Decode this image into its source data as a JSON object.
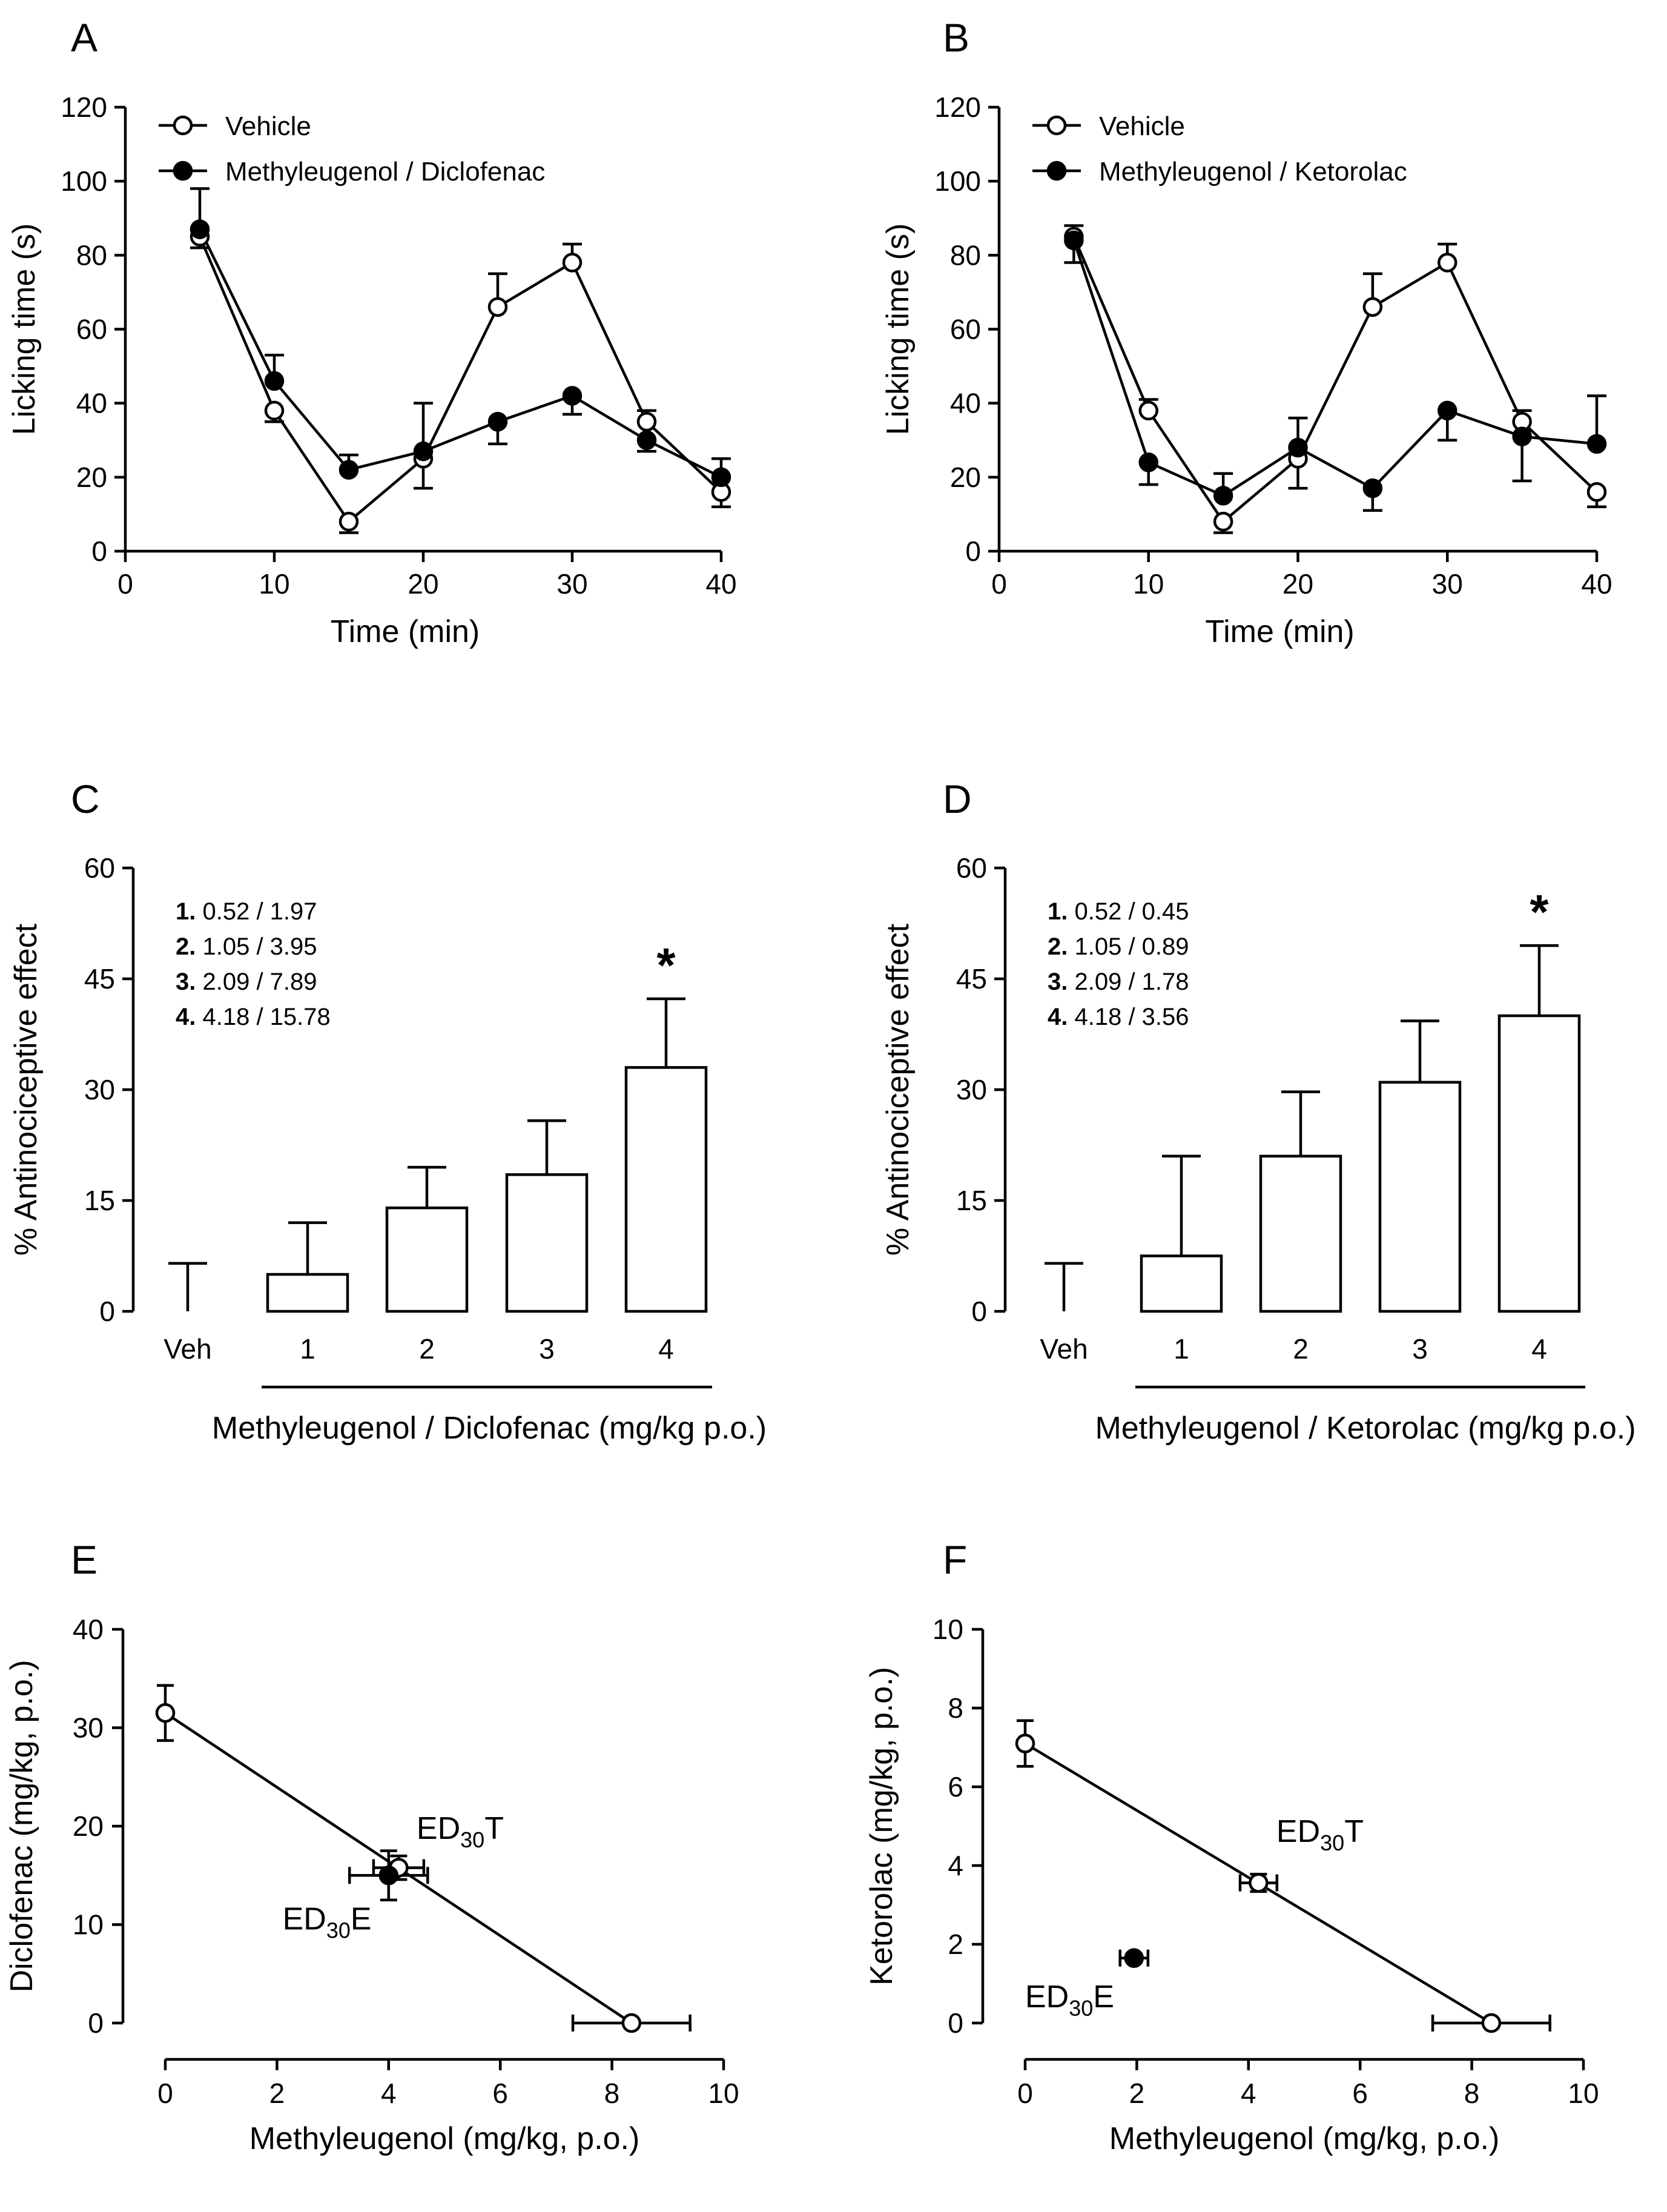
{
  "chart_data": [
    {
      "panel": "A",
      "type": "line",
      "xlabel": "Time  (min)",
      "ylabel": "Licking time (s)",
      "xlim": [
        0,
        40
      ],
      "ylim": [
        0,
        120
      ],
      "xticks": [
        0,
        10,
        20,
        30,
        40
      ],
      "yticks": [
        0,
        20,
        40,
        60,
        80,
        100,
        120
      ],
      "legend_position": "top-left",
      "series": [
        {
          "name": "Vehicle",
          "marker": "open",
          "x": [
            5,
            10,
            15,
            20,
            25,
            30,
            35,
            40
          ],
          "y": [
            85,
            38,
            8,
            25,
            66,
            78,
            35,
            16
          ],
          "err": [
            3,
            3,
            3,
            8,
            9,
            5,
            3,
            4
          ]
        },
        {
          "name": "Methyleugenol / Diclofenac",
          "marker": "filled",
          "x": [
            5,
            10,
            15,
            20,
            25,
            30,
            35,
            40
          ],
          "y": [
            87,
            46,
            22,
            27,
            35,
            42,
            30,
            20
          ],
          "err": [
            11,
            7,
            4,
            13,
            6,
            5,
            3,
            5
          ]
        }
      ]
    },
    {
      "panel": "B",
      "type": "line",
      "xlabel": "Time  (min)",
      "ylabel": "Licking time (s)",
      "xlim": [
        0,
        40
      ],
      "ylim": [
        0,
        120
      ],
      "xticks": [
        0,
        10,
        20,
        30,
        40
      ],
      "yticks": [
        0,
        20,
        40,
        60,
        80,
        100,
        120
      ],
      "legend_position": "top-left",
      "series": [
        {
          "name": "Vehicle",
          "marker": "open",
          "x": [
            5,
            10,
            15,
            20,
            25,
            30,
            35,
            40
          ],
          "y": [
            85,
            38,
            8,
            25,
            66,
            78,
            35,
            16
          ],
          "err": [
            3,
            3,
            3,
            8,
            9,
            5,
            3,
            4
          ]
        },
        {
          "name": "Methyleugenol / Ketorolac",
          "marker": "filled",
          "x": [
            5,
            10,
            15,
            20,
            25,
            30,
            35,
            40
          ],
          "y": [
            84,
            24,
            15,
            28,
            17,
            38,
            31,
            29
          ],
          "err": [
            6,
            6,
            6,
            8,
            6,
            8,
            12,
            13
          ]
        }
      ]
    },
    {
      "panel": "C",
      "type": "bar",
      "xlabel": "Methyleugenol / Diclofenac (mg/kg p.o.)",
      "ylabel": "% Antinociceptive effect",
      "ylim": [
        0,
        60
      ],
      "yticks": [
        0,
        15,
        30,
        45,
        60
      ],
      "categories": [
        "Veh",
        "1",
        "2",
        "3",
        "4"
      ],
      "values": [
        0,
        5,
        14,
        18.5,
        33
      ],
      "err": [
        6.5,
        7,
        5.5,
        7.3,
        9.3
      ],
      "significance": [
        "",
        "",
        "",
        "",
        "*"
      ],
      "dose_legend": [
        {
          "num": "1.",
          "text": " 0.52 / 1.97"
        },
        {
          "num": "2.",
          "text": " 1.05 / 3.95"
        },
        {
          "num": "3.",
          "text": " 2.09 / 7.89"
        },
        {
          "num": "4.",
          "text": " 4.18 / 15.78"
        }
      ]
    },
    {
      "panel": "D",
      "type": "bar",
      "xlabel": "Methyleugenol / Ketorolac (mg/kg p.o.)",
      "ylabel": "% Antinociceptive effect",
      "ylim": [
        0,
        60
      ],
      "yticks": [
        0,
        15,
        30,
        45,
        60
      ],
      "categories": [
        "Veh",
        "1",
        "2",
        "3",
        "4"
      ],
      "values": [
        0,
        7.5,
        21,
        31,
        40
      ],
      "err": [
        6.5,
        13.5,
        8.7,
        8.3,
        9.5
      ],
      "significance": [
        "",
        "",
        "",
        "",
        "*"
      ],
      "dose_legend": [
        {
          "num": "1.",
          "text": " 0.52 / 0.45"
        },
        {
          "num": "2.",
          "text": " 1.05 / 0.89"
        },
        {
          "num": "3.",
          "text": " 2.09 / 1.78"
        },
        {
          "num": "4.",
          "text": " 4.18 / 3.56"
        }
      ]
    },
    {
      "panel": "E",
      "type": "scatter",
      "xlabel": "Methyleugenol (mg/kg, p.o.)",
      "ylabel": "Diclofenac (mg/kg, p.o.)",
      "xlim": [
        0,
        10
      ],
      "ylim": [
        0,
        40
      ],
      "xticks": [
        0,
        2,
        4,
        6,
        8,
        10
      ],
      "yticks": [
        0,
        10,
        20,
        30,
        40
      ],
      "isobole": [
        [
          0,
          31.5
        ],
        [
          8.35,
          0
        ]
      ],
      "points": [
        {
          "name": "diclofenac-ED30",
          "x": 0,
          "y": 31.5,
          "xerr": 0,
          "yerr": 2.8,
          "marker": "open"
        },
        {
          "name": "methyleugenol-ED30",
          "x": 8.35,
          "y": 0,
          "xerr": 1.05,
          "yerr": 0,
          "marker": "open"
        },
        {
          "name": "ED30T",
          "x": 4.18,
          "y": 15.78,
          "xerr": 0.45,
          "yerr": 1.2,
          "marker": "open"
        },
        {
          "name": "ED30E",
          "x": 4.0,
          "y": 15.0,
          "xerr": 0.7,
          "yerr": 2.5,
          "marker": "filled"
        }
      ],
      "annotations": [
        {
          "label": "ED",
          "sub": "30",
          "suffix": "T",
          "x": 4.5,
          "y": 18.7
        },
        {
          "label": "ED",
          "sub": "30",
          "suffix": "E",
          "x": 2.1,
          "y": 9.5
        }
      ]
    },
    {
      "panel": "F",
      "type": "scatter",
      "xlabel": "Methyleugenol (mg/kg, p.o.)",
      "ylabel": "Ketorolac (mg/kg, p.o.)",
      "xlim": [
        0,
        10
      ],
      "ylim": [
        0,
        10
      ],
      "xticks": [
        0,
        2,
        4,
        6,
        8,
        10
      ],
      "yticks": [
        0,
        2,
        4,
        6,
        8,
        10
      ],
      "isobole": [
        [
          0,
          7.1
        ],
        [
          8.35,
          0
        ]
      ],
      "points": [
        {
          "name": "ketorolac-ED30",
          "x": 0,
          "y": 7.1,
          "xerr": 0,
          "yerr": 0.58,
          "marker": "open"
        },
        {
          "name": "methyleugenol-ED30",
          "x": 8.35,
          "y": 0,
          "xerr": 1.05,
          "yerr": 0,
          "marker": "open"
        },
        {
          "name": "ED30T",
          "x": 4.18,
          "y": 3.56,
          "xerr": 0.33,
          "yerr": 0.22,
          "marker": "open"
        },
        {
          "name": "ED30E",
          "x": 1.95,
          "y": 1.65,
          "xerr": 0.25,
          "yerr": 0.1,
          "marker": "filled"
        }
      ],
      "annotations": [
        {
          "label": "ED",
          "sub": "30",
          "suffix": "T",
          "x": 4.5,
          "y": 4.6
        },
        {
          "label": "ED",
          "sub": "30",
          "suffix": "E",
          "x": 0.0,
          "y": 0.4
        }
      ]
    }
  ]
}
